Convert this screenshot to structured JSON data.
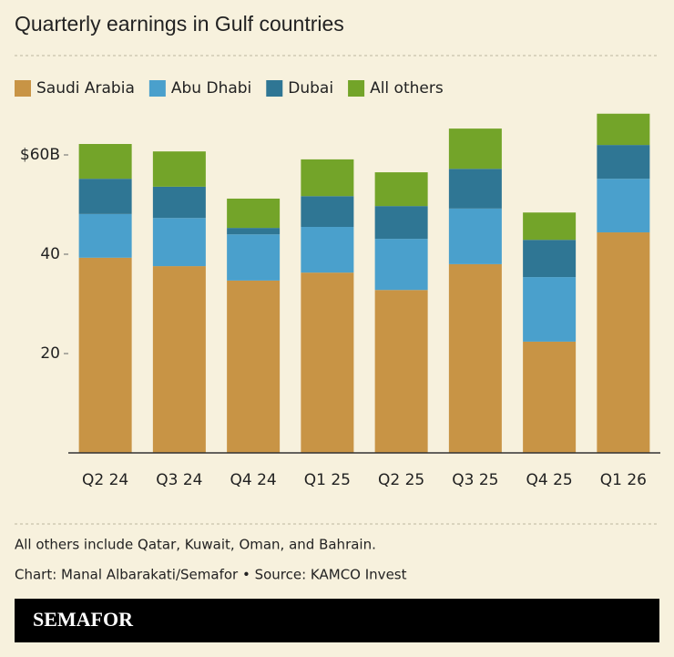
{
  "chart_data": {
    "type": "stacked_bar",
    "title": "Quarterly earnings in Gulf countries",
    "categories": [
      "Q2 24",
      "Q3 24",
      "Q4 24",
      "Q1 25",
      "Q2 25",
      "Q3 25",
      "Q4 25",
      "Q1 26"
    ],
    "series": [
      {
        "name": "Saudi Arabia",
        "color": "#c89445",
        "values": [
          39.3,
          37.6,
          34.7,
          36.3,
          32.8,
          38.0,
          22.4,
          44.4
        ]
      },
      {
        "name": "Abu Dhabi",
        "color": "#4aa0cc",
        "values": [
          8.8,
          9.7,
          9.3,
          9.2,
          10.3,
          11.2,
          13.0,
          10.8
        ]
      },
      {
        "name": "Dubai",
        "color": "#2f7694",
        "values": [
          7.1,
          6.3,
          1.3,
          6.2,
          6.6,
          8.0,
          7.5,
          6.8
        ]
      },
      {
        "name": "All others",
        "color": "#73a429",
        "values": [
          7.0,
          7.1,
          5.9,
          7.4,
          6.8,
          8.1,
          5.5,
          6.3
        ]
      }
    ],
    "ylim": [
      0,
      70
    ],
    "yticks": [
      20,
      40,
      {
        "value": 60,
        "label": "$60B"
      }
    ],
    "grid": false,
    "legend": "top-left",
    "note": "All others include Qatar, Kuwait, Oman, and Bahrain.",
    "credit": "Chart: Manal Albarakati/Semafor • Source: KAMCO Invest",
    "brand": "SEMAFOR"
  }
}
